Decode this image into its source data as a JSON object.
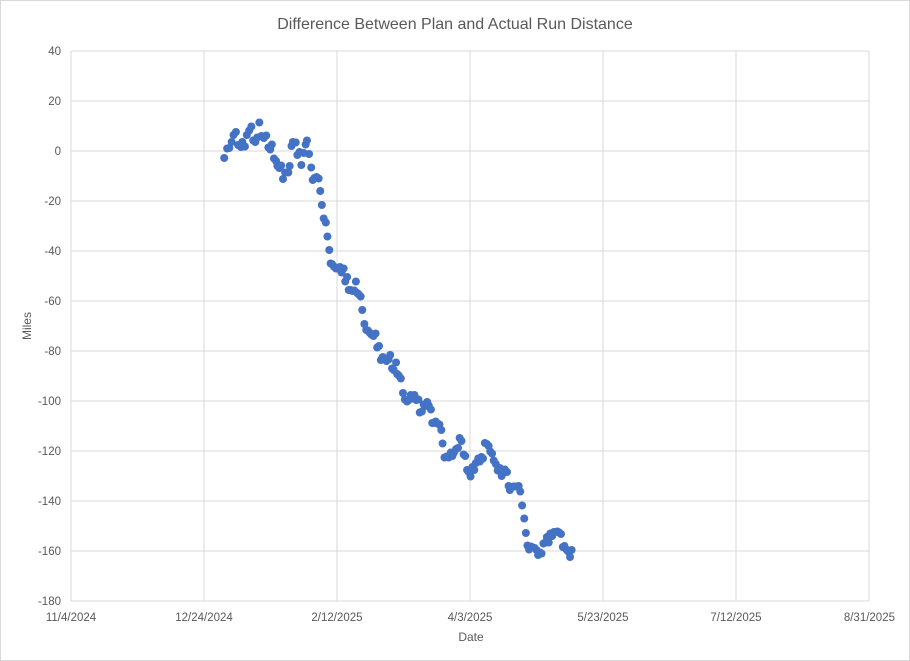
{
  "chart_data": {
    "type": "scatter",
    "title": "Difference Between Plan and Actual Run Distance",
    "xlabel": "Date",
    "ylabel": "Miles",
    "x_unit": "days since 11/4/2024",
    "xlim": [
      0,
      300
    ],
    "ylim": [
      -180,
      40
    ],
    "x_ticks": [
      {
        "label": "11/4/2024",
        "value": 0
      },
      {
        "label": "12/24/2024",
        "value": 50
      },
      {
        "label": "2/12/2025",
        "value": 100
      },
      {
        "label": "4/3/2025",
        "value": 150
      },
      {
        "label": "5/23/2025",
        "value": 200
      },
      {
        "label": "7/12/2025",
        "value": 250
      },
      {
        "label": "8/31/2025",
        "value": 300
      }
    ],
    "y_ticks": [
      40,
      20,
      0,
      -20,
      -40,
      -60,
      -80,
      -100,
      -120,
      -140,
      -160,
      -180
    ],
    "gridlines": "both",
    "series": [
      {
        "name": "Difference",
        "color": "#4472c4",
        "points": [
          [
            57.6,
            -2.8
          ],
          [
            58.7,
            1
          ],
          [
            59.5,
            1.2
          ],
          [
            60.4,
            3.6
          ],
          [
            61.1,
            6.4
          ],
          [
            62,
            7.6
          ],
          [
            62.8,
            2.4
          ],
          [
            63.9,
            1.6
          ],
          [
            64.4,
            3.6
          ],
          [
            65.4,
            1.8
          ],
          [
            66.1,
            6.4
          ],
          [
            67,
            8.2
          ],
          [
            67.8,
            9.8
          ],
          [
            68.5,
            4.2
          ],
          [
            69.3,
            3.6
          ],
          [
            70,
            5.4
          ],
          [
            70.8,
            11.4
          ],
          [
            71.6,
            6
          ],
          [
            72.5,
            5.2
          ],
          [
            73.4,
            6.2
          ],
          [
            74.2,
            1.4
          ],
          [
            74.9,
            0.6
          ],
          [
            75.5,
            2.6
          ],
          [
            76.3,
            -3
          ],
          [
            77.1,
            -4
          ],
          [
            77.6,
            -6
          ],
          [
            78.3,
            -6.8
          ],
          [
            79,
            -5.8
          ],
          [
            79.7,
            -11.2
          ],
          [
            80.5,
            -8.6
          ],
          [
            81.7,
            -8.6
          ],
          [
            82.2,
            -6
          ],
          [
            82.9,
            2
          ],
          [
            83.4,
            3.6
          ],
          [
            84.5,
            3.4
          ],
          [
            85.1,
            -1.6
          ],
          [
            85.9,
            -0.4
          ],
          [
            86.6,
            -5.6
          ],
          [
            87.5,
            -0.8
          ],
          [
            88.2,
            2.6
          ],
          [
            88.7,
            4.2
          ],
          [
            89.5,
            -1.2
          ],
          [
            90.3,
            -6.6
          ],
          [
            90.9,
            -11.6
          ],
          [
            91.5,
            -10.8
          ],
          [
            92.3,
            -10.4
          ],
          [
            93.1,
            -11
          ],
          [
            93.7,
            -16
          ],
          [
            94.3,
            -21.6
          ],
          [
            95,
            -27
          ],
          [
            95.8,
            -28.6
          ],
          [
            96.4,
            -34.2
          ],
          [
            97.1,
            -39.6
          ],
          [
            97.6,
            -45
          ],
          [
            98.1,
            -45.2
          ],
          [
            98.8,
            -46.2
          ],
          [
            99.6,
            -47
          ],
          [
            100.3,
            -47
          ],
          [
            101.1,
            -46.4
          ],
          [
            101.7,
            -48.6
          ],
          [
            102.5,
            -47
          ],
          [
            103.1,
            -52.2
          ],
          [
            103.8,
            -50.4
          ],
          [
            104.4,
            -55.6
          ],
          [
            105.1,
            -55.6
          ],
          [
            105.8,
            -56
          ],
          [
            106.5,
            -55.8
          ],
          [
            107.1,
            -52.2
          ],
          [
            107.6,
            -56.8
          ],
          [
            108.2,
            -57.4
          ],
          [
            108.9,
            -58.2
          ],
          [
            109.5,
            -63.6
          ],
          [
            110.3,
            -69.2
          ],
          [
            111,
            -71.6
          ],
          [
            111.6,
            -71.8
          ],
          [
            112.2,
            -72.6
          ],
          [
            112.9,
            -73.4
          ],
          [
            113.7,
            -74
          ],
          [
            114.5,
            -73
          ],
          [
            115.1,
            -78.6
          ],
          [
            115.8,
            -78
          ],
          [
            116.5,
            -83.6
          ],
          [
            117.2,
            -82.4
          ],
          [
            117.9,
            -83.2
          ],
          [
            118.6,
            -84
          ],
          [
            119.4,
            -83.4
          ],
          [
            120,
            -81.6
          ],
          [
            120.7,
            -87
          ],
          [
            121.3,
            -87.6
          ],
          [
            122.2,
            -84.6
          ],
          [
            122.6,
            -89.2
          ],
          [
            123.2,
            -89.8
          ],
          [
            124,
            -91
          ],
          [
            124.8,
            -96.8
          ],
          [
            125.5,
            -99.4
          ],
          [
            126.3,
            -100.2
          ],
          [
            127,
            -99.6
          ],
          [
            127.7,
            -97.6
          ],
          [
            128.5,
            -99
          ],
          [
            129.1,
            -97.6
          ],
          [
            129.8,
            -99.6
          ],
          [
            130.6,
            -99.4
          ],
          [
            131.1,
            -104.6
          ],
          [
            131.9,
            -104.2
          ],
          [
            132.6,
            -101.4
          ],
          [
            133.3,
            -102
          ],
          [
            133.9,
            -100.4
          ],
          [
            134.5,
            -101.8
          ],
          [
            135.3,
            -103.4
          ],
          [
            135.8,
            -108.8
          ],
          [
            136.4,
            -108.8
          ],
          [
            137.1,
            -108.2
          ],
          [
            137.8,
            -109
          ],
          [
            138.5,
            -109.4
          ],
          [
            139.2,
            -111.6
          ],
          [
            139.7,
            -117
          ],
          [
            140.4,
            -122.6
          ],
          [
            141.2,
            -122.2
          ],
          [
            142,
            -122.6
          ],
          [
            142.8,
            -120.6
          ],
          [
            143.4,
            -122
          ],
          [
            144,
            -120.6
          ],
          [
            144.8,
            -119.2
          ],
          [
            145.5,
            -118.8
          ],
          [
            146.1,
            -114.8
          ],
          [
            146.8,
            -116
          ],
          [
            147.6,
            -121.4
          ],
          [
            148.2,
            -122
          ],
          [
            148.9,
            -127.6
          ],
          [
            149.5,
            -128.4
          ],
          [
            150.2,
            -130.2
          ],
          [
            150.9,
            -126.4
          ],
          [
            151.6,
            -127.6
          ],
          [
            152.2,
            -124.8
          ],
          [
            153.1,
            -123
          ],
          [
            153.7,
            -124.2
          ],
          [
            154.3,
            -122.4
          ],
          [
            154.9,
            -123
          ],
          [
            155.6,
            -116.8
          ],
          [
            156.3,
            -117.2
          ],
          [
            157,
            -118
          ],
          [
            157.6,
            -120.2
          ],
          [
            158.3,
            -121
          ],
          [
            158.9,
            -123.8
          ],
          [
            159.7,
            -125.2
          ],
          [
            160.4,
            -127.8
          ],
          [
            161.2,
            -126.8
          ],
          [
            161.9,
            -130
          ],
          [
            162.5,
            -128
          ],
          [
            163.1,
            -127.4
          ],
          [
            163.9,
            -128.4
          ],
          [
            164.5,
            -134
          ],
          [
            165,
            -135.6
          ],
          [
            165.6,
            -134.4
          ],
          [
            166.3,
            -134.2
          ],
          [
            167,
            -134.2
          ],
          [
            167.6,
            -134.2
          ],
          [
            168.3,
            -134
          ],
          [
            168.9,
            -136.2
          ],
          [
            169.6,
            -141.8
          ],
          [
            170.4,
            -147
          ],
          [
            171,
            -152.8
          ],
          [
            171.6,
            -157.8
          ],
          [
            172.2,
            -159.4
          ],
          [
            172.9,
            -158.2
          ],
          [
            173.6,
            -158.6
          ],
          [
            174.3,
            -158.8
          ],
          [
            175,
            -159.6
          ],
          [
            175.6,
            -161.6
          ],
          [
            176.3,
            -160.6
          ],
          [
            176.9,
            -161
          ],
          [
            177.6,
            -157
          ],
          [
            178.3,
            -156.6
          ],
          [
            178.9,
            -154.4
          ],
          [
            179.6,
            -156.6
          ],
          [
            180.2,
            -153
          ],
          [
            180.9,
            -154
          ],
          [
            181.5,
            -152.4
          ],
          [
            182.2,
            -152.4
          ],
          [
            182.9,
            -152.2
          ],
          [
            183.5,
            -152.6
          ],
          [
            184.2,
            -153.2
          ],
          [
            184.9,
            -158.4
          ],
          [
            185.5,
            -158
          ],
          [
            186.2,
            -159.4
          ],
          [
            186.9,
            -160.2
          ],
          [
            187.6,
            -162.4
          ],
          [
            188.2,
            -159.6
          ]
        ]
      }
    ]
  }
}
